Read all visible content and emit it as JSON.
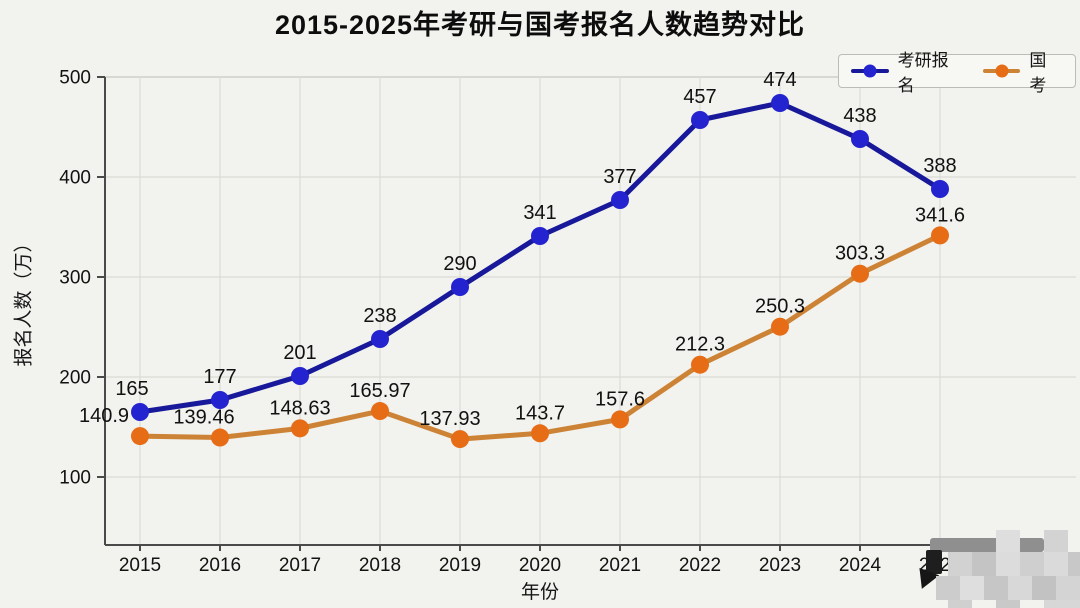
{
  "title": "2015-2025年考研与国考报名人数趋势对比",
  "legend": {
    "items": [
      {
        "label": "考研报名",
        "line_color": "#18189b",
        "marker_color": "#2323cf"
      },
      {
        "label": "国考",
        "line_color": "#cd8335",
        "marker_color": "#e66c15"
      }
    ]
  },
  "axes": {
    "xlabel": "年份",
    "ylabel": "报名人数（万）"
  },
  "chart_data": {
    "type": "line",
    "categories": [
      "2015",
      "2016",
      "2017",
      "2018",
      "2019",
      "2020",
      "2021",
      "2022",
      "2023",
      "2024",
      "2025"
    ],
    "x": [
      2015,
      2016,
      2017,
      2018,
      2019,
      2020,
      2021,
      2022,
      2023,
      2024,
      2025
    ],
    "series": [
      {
        "name": "考研报名",
        "values": [
          165,
          177,
          201,
          238,
          290,
          341,
          377,
          457,
          474,
          438,
          388
        ],
        "line_color": "#18189b",
        "marker_color": "#2323cf",
        "label_dx": [
          -8,
          0,
          0,
          0,
          0,
          0,
          0,
          0,
          0,
          0,
          0
        ]
      },
      {
        "name": "国考",
        "values": [
          140.9,
          139.46,
          148.63,
          165.97,
          137.93,
          143.7,
          157.6,
          212.3,
          250.3,
          303.3,
          341.6
        ],
        "line_color": "#cd8335",
        "marker_color": "#e66c15",
        "label_dx": [
          -36,
          -16,
          0,
          0,
          -10,
          0,
          0,
          0,
          0,
          0,
          0
        ]
      }
    ],
    "title": "2015-2025年考研与国考报名人数趋势对比",
    "xlabel": "年份",
    "ylabel": "报名人数（万）",
    "yticks": [
      100,
      200,
      300,
      400,
      500
    ],
    "ylim": [
      33,
      500
    ],
    "grid": true,
    "legend_position": "top-right",
    "value_labels": true
  },
  "artifacts": {
    "bottom_right_mosaic": true
  },
  "colors": {
    "background": "#f2f2ee",
    "gridline": "#dcdcd6",
    "axis_spine": "#4a4a4a",
    "label_text": "#121212"
  }
}
